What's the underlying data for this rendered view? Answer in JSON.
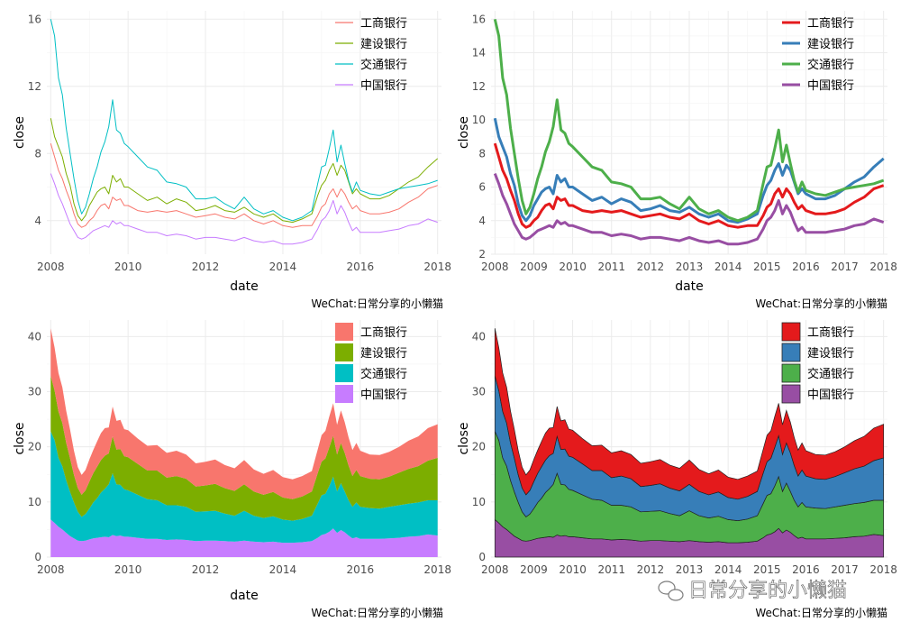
{
  "caption": "WeChat:日常分享的小懒猫",
  "watermark": "日常分享的小懒猫",
  "chart_data": [
    {
      "type": "line",
      "xlabel": "date",
      "ylabel": "close",
      "x_ticks": [
        2008,
        2010,
        2012,
        2014,
        2016,
        2018
      ],
      "y_ticks": [
        4,
        8,
        12,
        16
      ],
      "ylim": [
        2,
        16.5
      ],
      "xlim": [
        2007.9,
        2018.1
      ],
      "legend": "top-right",
      "legend_style": "line",
      "grid": true,
      "colors": {
        "工商银行": "#F8766D",
        "建设银行": "#7CAE00",
        "交通银行": "#00BFC4",
        "中国银行": "#C77CFF"
      },
      "line_width": 1
    },
    {
      "type": "line",
      "xlabel": "date",
      "ylabel": "close",
      "x_ticks": [
        2008,
        2009,
        2010,
        2011,
        2012,
        2013,
        2014,
        2015,
        2016,
        2017,
        2018
      ],
      "y_ticks": [
        2,
        4,
        6,
        8,
        10,
        12,
        14,
        16
      ],
      "ylim": [
        2,
        16.5
      ],
      "xlim": [
        2007.9,
        2018.1
      ],
      "legend": "top-right",
      "legend_style": "line",
      "grid": true,
      "colors": {
        "工商银行": "#E41A1C",
        "建设银行": "#377EB8",
        "交通银行": "#4DAF4A",
        "中国银行": "#984EA3"
      },
      "line_width": 3
    },
    {
      "type": "area",
      "stacked": true,
      "xlabel": "date",
      "ylabel": "close",
      "x_ticks": [
        2008,
        2010,
        2012,
        2014,
        2016,
        2018
      ],
      "y_ticks": [
        0,
        10,
        20,
        30,
        40
      ],
      "ylim": [
        0,
        43
      ],
      "xlim": [
        2007.9,
        2018.1
      ],
      "legend": "top-right",
      "legend_style": "fill",
      "grid": true,
      "colors": {
        "工商银行": "#F8766D",
        "建设银行": "#7CAE00",
        "交通银行": "#00BFC4",
        "中国银行": "#C77CFF"
      },
      "outline": false
    },
    {
      "type": "area",
      "stacked": true,
      "xlabel": "",
      "ylabel": "close",
      "x_ticks": [
        2008,
        2009,
        2010,
        2011,
        2012,
        2013,
        2014,
        2015,
        2016,
        2017,
        2018
      ],
      "y_ticks": [
        0,
        10,
        20,
        30,
        40
      ],
      "ylim": [
        0,
        43
      ],
      "xlim": [
        2007.9,
        2018.1
      ],
      "legend": "top-right",
      "legend_style": "fill",
      "grid": true,
      "colors": {
        "工商银行": "#E41A1C",
        "建设银行": "#377EB8",
        "交通银行": "#4DAF4A",
        "中国银行": "#984EA3"
      },
      "outline": true
    }
  ],
  "series_names": [
    "工商银行",
    "建设银行",
    "交通银行",
    "中国银行"
  ],
  "series_data": {
    "x": [
      2008.0,
      2008.1,
      2008.2,
      2008.3,
      2008.4,
      2008.5,
      2008.6,
      2008.7,
      2008.8,
      2008.9,
      2009.0,
      2009.1,
      2009.2,
      2009.3,
      2009.4,
      2009.5,
      2009.6,
      2009.7,
      2009.8,
      2009.9,
      2010.0,
      2010.25,
      2010.5,
      2010.75,
      2011.0,
      2011.25,
      2011.5,
      2011.75,
      2012.0,
      2012.25,
      2012.5,
      2012.75,
      2013.0,
      2013.25,
      2013.5,
      2013.75,
      2014.0,
      2014.25,
      2014.5,
      2014.75,
      2014.9,
      2015.0,
      2015.1,
      2015.2,
      2015.3,
      2015.4,
      2015.5,
      2015.6,
      2015.7,
      2015.8,
      2015.9,
      2016.0,
      2016.25,
      2016.5,
      2016.75,
      2017.0,
      2017.25,
      2017.5,
      2017.75,
      2018.0
    ],
    "工商银行": [
      8.6,
      7.8,
      7.0,
      6.5,
      5.8,
      5.2,
      4.4,
      3.8,
      3.6,
      3.7,
      4.0,
      4.2,
      4.6,
      4.9,
      5.0,
      4.7,
      5.4,
      5.2,
      5.3,
      4.9,
      4.9,
      4.6,
      4.5,
      4.6,
      4.5,
      4.6,
      4.4,
      4.2,
      4.3,
      4.4,
      4.2,
      4.1,
      4.4,
      4.0,
      3.8,
      4.0,
      3.7,
      3.6,
      3.7,
      3.7,
      4.3,
      4.8,
      5.0,
      5.6,
      5.9,
      5.4,
      5.9,
      5.6,
      5.1,
      4.7,
      4.9,
      4.6,
      4.4,
      4.4,
      4.5,
      4.7,
      5.1,
      5.4,
      5.9,
      6.1
    ],
    "建设银行": [
      10.1,
      9.0,
      8.4,
      7.8,
      6.8,
      6.1,
      5.0,
      4.3,
      4.0,
      4.3,
      4.9,
      5.3,
      5.7,
      5.9,
      6.0,
      5.6,
      6.7,
      6.3,
      6.5,
      6.0,
      6.0,
      5.6,
      5.2,
      5.4,
      5.0,
      5.3,
      5.1,
      4.6,
      4.7,
      4.9,
      4.6,
      4.5,
      4.8,
      4.4,
      4.2,
      4.4,
      4.0,
      3.9,
      4.1,
      4.4,
      5.5,
      6.1,
      6.4,
      7.0,
      7.4,
      6.7,
      7.3,
      7.0,
      6.3,
      5.6,
      5.9,
      5.6,
      5.3,
      5.3,
      5.5,
      5.9,
      6.3,
      6.6,
      7.2,
      7.7
    ],
    "交通银行": [
      16.0,
      15.0,
      12.5,
      11.5,
      9.5,
      8.0,
      6.5,
      5.2,
      4.4,
      4.8,
      5.6,
      6.5,
      7.2,
      8.1,
      8.7,
      9.6,
      11.2,
      9.4,
      9.2,
      8.6,
      8.4,
      7.8,
      7.2,
      7.0,
      6.3,
      6.2,
      6.0,
      5.3,
      5.3,
      5.4,
      5.0,
      4.7,
      5.4,
      4.7,
      4.4,
      4.6,
      4.2,
      4.0,
      4.2,
      4.6,
      6.2,
      7.2,
      7.3,
      8.3,
      9.4,
      7.5,
      8.5,
      7.4,
      6.4,
      5.7,
      6.3,
      5.8,
      5.6,
      5.5,
      5.7,
      5.9,
      6.0,
      6.1,
      6.2,
      6.4
    ],
    "中国银行": [
      6.8,
      6.2,
      5.5,
      5.0,
      4.4,
      3.8,
      3.4,
      3.0,
      2.9,
      3.0,
      3.2,
      3.4,
      3.5,
      3.6,
      3.7,
      3.6,
      4.0,
      3.8,
      3.9,
      3.7,
      3.7,
      3.5,
      3.3,
      3.3,
      3.1,
      3.2,
      3.1,
      2.9,
      3.0,
      3.0,
      2.9,
      2.8,
      3.0,
      2.8,
      2.7,
      2.8,
      2.6,
      2.6,
      2.7,
      2.9,
      3.5,
      4.0,
      4.2,
      4.6,
      5.2,
      4.4,
      4.9,
      4.5,
      3.9,
      3.4,
      3.6,
      3.3,
      3.3,
      3.3,
      3.4,
      3.5,
      3.7,
      3.8,
      4.1,
      3.9
    ]
  }
}
